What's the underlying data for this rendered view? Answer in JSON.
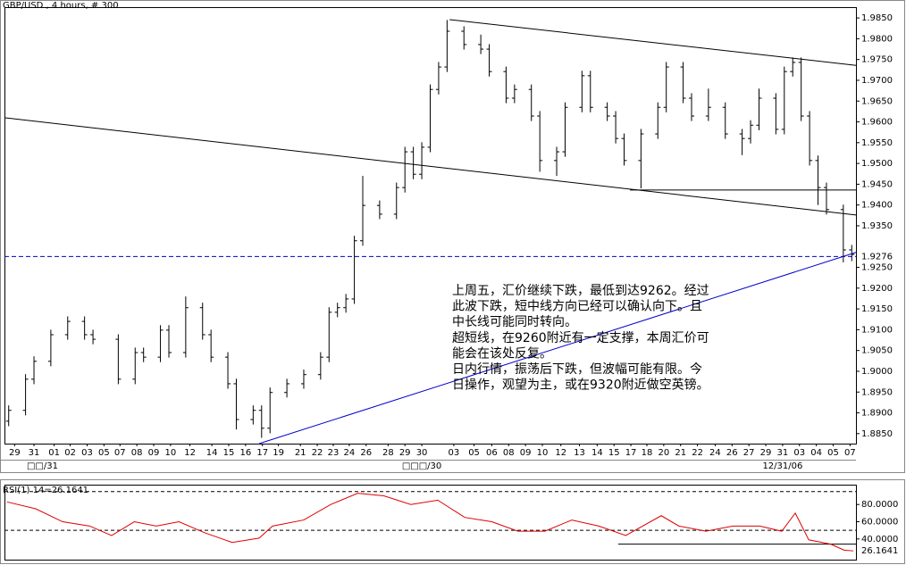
{
  "chart_data": [
    {
      "type": "ohlc",
      "title": "GBP/USD , 4 hours, # 300",
      "color": "#000000",
      "x": [
        0,
        2,
        3,
        5,
        7,
        9,
        10,
        13,
        15,
        16,
        18,
        19,
        21,
        23,
        24,
        26,
        27,
        29,
        30,
        31,
        33,
        35,
        37,
        38,
        39,
        40,
        41,
        42,
        44,
        46,
        47,
        48,
        49,
        50,
        51,
        52,
        54,
        56,
        57,
        59,
        60,
        62,
        63,
        65,
        66,
        68,
        69,
        71,
        72,
        73,
        75,
        77,
        78,
        80,
        81,
        83,
        85,
        87,
        88,
        89,
        91,
        92,
        93,
        94,
        95,
        96,
        97,
        99,
        100
      ],
      "open": [
        1.888,
        1.8906,
        1.8981,
        1.9024,
        1.9088,
        1.912,
        1.9088,
        1.9077,
        1.8981,
        1.9045,
        1.9034,
        1.9099,
        1.9045,
        1.9153,
        1.9088,
        1.9034,
        1.897,
        1.8884,
        1.8906,
        1.8863,
        1.8949,
        1.897,
        1.8992,
        1.9034,
        1.9142,
        1.9153,
        1.9174,
        1.9314,
        1.9399,
        1.9378,
        1.9442,
        1.9528,
        1.9474,
        1.9539,
        1.9678,
        1.9732,
        1.9818,
        1.9786,
        1.9775,
        1.9721,
        1.9657,
        1.9678,
        1.9614,
        1.9507,
        1.9528,
        1.9635,
        1.9711,
        1.9635,
        1.9614,
        1.956,
        1.9507,
        1.9571,
        1.9635,
        1.9732,
        1.9657,
        1.9614,
        1.9635,
        1.9571,
        1.956,
        1.9592,
        1.9657,
        1.9582,
        1.9721,
        1.9743,
        1.9614,
        1.9507,
        1.9442,
        1.9389,
        1.9292
      ],
      "high": [
        1.8918,
        1.8993,
        1.9036,
        1.91,
        1.9132,
        1.9132,
        1.91,
        1.9089,
        1.9057,
        1.9057,
        1.9111,
        1.9111,
        1.918,
        1.9165,
        1.91,
        1.9046,
        1.8982,
        1.8918,
        1.8918,
        1.8961,
        1.8982,
        1.9004,
        1.9046,
        1.9154,
        1.9165,
        1.9186,
        1.9326,
        1.947,
        1.9411,
        1.9454,
        1.954,
        1.954,
        1.9551,
        1.969,
        1.9744,
        1.9845,
        1.983,
        1.981,
        1.9787,
        1.9733,
        1.969,
        1.969,
        1.9626,
        1.954,
        1.9647,
        1.9723,
        1.9723,
        1.9647,
        1.9626,
        1.9572,
        1.9583,
        1.9647,
        1.9744,
        1.9744,
        1.9669,
        1.968,
        1.9647,
        1.9583,
        1.9604,
        1.968,
        1.9669,
        1.9733,
        1.9755,
        1.9755,
        1.9626,
        1.9519,
        1.9454,
        1.9401,
        1.9304
      ],
      "low": [
        1.8868,
        1.8894,
        1.8969,
        1.9012,
        1.9076,
        1.9076,
        1.9065,
        1.8969,
        1.8969,
        1.9022,
        1.9022,
        1.9033,
        1.9033,
        1.9076,
        1.9022,
        1.8958,
        1.886,
        1.8872,
        1.884,
        1.8851,
        1.8937,
        1.8958,
        1.898,
        1.9022,
        1.913,
        1.9141,
        1.9162,
        1.9302,
        1.9366,
        1.9366,
        1.943,
        1.9462,
        1.9462,
        1.9527,
        1.9666,
        1.972,
        1.9774,
        1.9763,
        1.9709,
        1.9645,
        1.9645,
        1.9602,
        1.948,
        1.947,
        1.9516,
        1.9623,
        1.9623,
        1.9602,
        1.9548,
        1.9495,
        1.944,
        1.9559,
        1.9623,
        1.9645,
        1.9602,
        1.9602,
        1.9559,
        1.952,
        1.9548,
        1.958,
        1.957,
        1.957,
        1.9709,
        1.9602,
        1.9495,
        1.94,
        1.9377,
        1.9262,
        1.9265
      ],
      "close": [
        1.8906,
        1.8981,
        1.9024,
        1.9088,
        1.912,
        1.9088,
        1.9077,
        1.8981,
        1.9045,
        1.9034,
        1.9099,
        1.9045,
        1.9153,
        1.9088,
        1.9034,
        1.897,
        1.8884,
        1.8906,
        1.8863,
        1.8949,
        1.897,
        1.8992,
        1.9034,
        1.9142,
        1.9153,
        1.9174,
        1.9314,
        1.9399,
        1.9378,
        1.9442,
        1.9528,
        1.9474,
        1.9539,
        1.9678,
        1.9732,
        1.9818,
        1.9786,
        1.9775,
        1.9721,
        1.9657,
        1.9678,
        1.9614,
        1.9507,
        1.9528,
        1.9635,
        1.9711,
        1.9635,
        1.9614,
        1.956,
        1.9507,
        1.9571,
        1.9635,
        1.9732,
        1.9657,
        1.9614,
        1.9635,
        1.9571,
        1.956,
        1.9592,
        1.9657,
        1.9582,
        1.9721,
        1.9743,
        1.9614,
        1.9507,
        1.9442,
        1.9389,
        1.9292,
        1.9281
      ],
      "xlim": [
        -0.5,
        100.5
      ],
      "ylim": [
        1.8826,
        1.9876
      ],
      "yticks": [
        {
          "value": 1.985,
          "label": "1.9850"
        },
        {
          "value": 1.98,
          "label": "1.9800"
        },
        {
          "value": 1.975,
          "label": "1.9750"
        },
        {
          "value": 1.97,
          "label": "1.9700"
        },
        {
          "value": 1.965,
          "label": "1.9650"
        },
        {
          "value": 1.96,
          "label": "1.9600"
        },
        {
          "value": 1.955,
          "label": "1.9550"
        },
        {
          "value": 1.95,
          "label": "1.9500"
        },
        {
          "value": 1.945,
          "label": "1.9450"
        },
        {
          "value": 1.94,
          "label": "1.9400"
        },
        {
          "value": 1.935,
          "label": "1.9350"
        },
        {
          "value": 1.925,
          "label": "1.9250"
        },
        {
          "value": 1.92,
          "label": "1.9200"
        },
        {
          "value": 1.915,
          "label": "1.9150"
        },
        {
          "value": 1.91,
          "label": "1.9100"
        },
        {
          "value": 1.905,
          "label": "1.9050"
        },
        {
          "value": 1.9,
          "label": "1.9000"
        },
        {
          "value": 1.895,
          "label": "1.8950"
        },
        {
          "value": 1.89,
          "label": "1.8900"
        },
        {
          "value": 1.885,
          "label": "1.8850"
        }
      ],
      "xticks": [
        {
          "value": 0.7,
          "label": "29"
        },
        {
          "value": 3.0,
          "label": "31"
        },
        {
          "value": 5.4,
          "label": "01"
        },
        {
          "value": 7.3,
          "label": "02"
        },
        {
          "value": 9.3,
          "label": "03"
        },
        {
          "value": 11.3,
          "label": "05"
        },
        {
          "value": 13.2,
          "label": "07"
        },
        {
          "value": 15.2,
          "label": "08"
        },
        {
          "value": 17.2,
          "label": "09"
        },
        {
          "value": 19.2,
          "label": "10"
        },
        {
          "value": 21.5,
          "label": "12"
        },
        {
          "value": 24.1,
          "label": "14"
        },
        {
          "value": 26.1,
          "label": "15"
        },
        {
          "value": 28.1,
          "label": "16"
        },
        {
          "value": 30.1,
          "label": "17"
        },
        {
          "value": 32.0,
          "label": "19"
        },
        {
          "value": 34.6,
          "label": "21"
        },
        {
          "value": 36.6,
          "label": "22"
        },
        {
          "value": 38.5,
          "label": "23"
        },
        {
          "value": 40.4,
          "label": "24"
        },
        {
          "value": 42.4,
          "label": "26"
        },
        {
          "value": 45.0,
          "label": "28"
        },
        {
          "value": 47.0,
          "label": "29"
        },
        {
          "value": 49.0,
          "label": "30"
        },
        {
          "value": 52.8,
          "label": "03"
        },
        {
          "value": 55.2,
          "label": "05"
        },
        {
          "value": 57.3,
          "label": "06"
        },
        {
          "value": 59.3,
          "label": "08"
        },
        {
          "value": 61.3,
          "label": "09"
        },
        {
          "value": 63.3,
          "label": "10"
        },
        {
          "value": 65.5,
          "label": "12"
        },
        {
          "value": 67.7,
          "label": "13"
        },
        {
          "value": 69.8,
          "label": "14"
        },
        {
          "value": 71.8,
          "label": "15"
        },
        {
          "value": 73.8,
          "label": "17"
        },
        {
          "value": 75.7,
          "label": "18"
        },
        {
          "value": 77.7,
          "label": "20"
        },
        {
          "value": 79.7,
          "label": "21"
        },
        {
          "value": 81.7,
          "label": "22"
        },
        {
          "value": 83.8,
          "label": "24"
        },
        {
          "value": 85.8,
          "label": "26"
        },
        {
          "value": 87.8,
          "label": "27"
        },
        {
          "value": 89.8,
          "label": "29"
        },
        {
          "value": 91.8,
          "label": "31"
        },
        {
          "value": 93.8,
          "label": "03"
        },
        {
          "value": 95.8,
          "label": "04"
        },
        {
          "value": 97.8,
          "label": "05"
        },
        {
          "value": 99.8,
          "label": "07"
        }
      ],
      "x_period_labels": [
        {
          "value": 4.0,
          "label": "□□/31"
        },
        {
          "value": 49.0,
          "label": "□□□/30"
        },
        {
          "value": 91.8,
          "label": "12/31/06"
        }
      ],
      "hline": {
        "value": 1.9276,
        "label": "1.9276",
        "color": "#0000cc"
      },
      "trendlines": [
        {
          "x": [
            52.3,
            100.5
          ],
          "y": [
            1.9846,
            1.9736
          ],
          "color": "#000000"
        },
        {
          "x": [
            -0.5,
            100.5
          ],
          "y": [
            1.961,
            1.9376
          ],
          "color": "#000000"
        },
        {
          "x": [
            73.7,
            100.5
          ],
          "y": [
            1.9436,
            1.9436
          ],
          "color": "#000000"
        },
        {
          "x": [
            29.7,
            100.5
          ],
          "y": [
            1.8826,
            1.9286
          ],
          "color": "#0000cc"
        }
      ],
      "annotation": {
        "color": "#dd0000",
        "lines": [
          "上周五，汇价继续下跌，最低到达9262。经过",
          "此波下跌，短中线方向已经可以确认向下。且",
          "中长线可能同时转向。",
          "超短线，在9260附近有一定支撑，本周汇价可",
          "能会在该处反复。",
          "日内行情，振荡后下跌，但波幅可能有限。今",
          "日操作，观望为主，或在9320附近做空英镑。"
        ]
      }
    },
    {
      "type": "line",
      "title": "RSI(1) 14=26.1641",
      "title_color": "#cc0000",
      "x": [
        -0.2,
        3.2,
        6.4,
        9.6,
        12.2,
        14.9,
        17.5,
        20.2,
        23.3,
        26.5,
        29.7,
        31.3,
        35.0,
        38.2,
        41.4,
        44.5,
        47.7,
        50.9,
        54.1,
        57.3,
        60.4,
        63.6,
        66.8,
        70.0,
        73.2,
        77.4,
        79.5,
        82.7,
        85.9,
        89.1,
        91.7,
        93.3,
        94.9,
        97.5,
        99.1,
        100.2
      ],
      "series": [
        {
          "name": "RSI",
          "color": "#dd0000",
          "values": [
            83,
            75,
            60,
            55,
            44,
            60,
            55,
            60,
            47,
            36,
            41,
            55,
            62,
            80,
            93,
            90,
            80,
            85,
            65,
            60,
            49,
            49,
            62,
            55,
            44,
            67,
            55,
            49,
            55,
            55,
            49,
            70,
            39,
            34,
            27,
            26.1641
          ]
        }
      ],
      "last_color": "#0000cc",
      "xlim": [
        -0.5,
        100.5
      ],
      "ylim": [
        16,
        103
      ],
      "yticks": [
        {
          "value": 80,
          "label": "80.0000"
        },
        {
          "value": 60,
          "label": "60.0000"
        },
        {
          "value": 40,
          "label": "40.0000"
        }
      ],
      "dashed_levels": [
        50,
        95
      ],
      "hline": {
        "x": [
          72.3,
          100.5
        ],
        "value": 34
      }
    }
  ]
}
